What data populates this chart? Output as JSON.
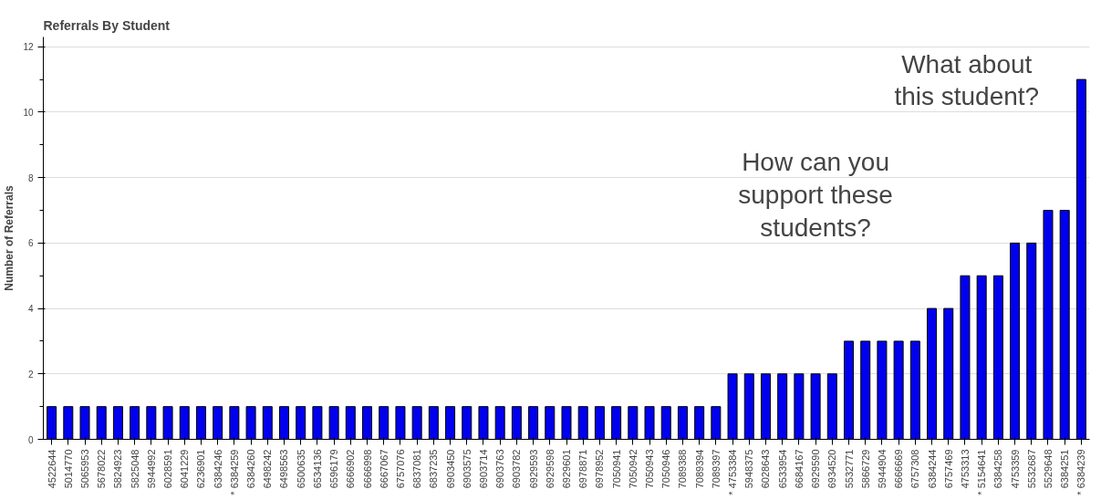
{
  "chart_data": {
    "type": "bar",
    "title": "Referrals By Student",
    "ylabel": "Number of Referrals",
    "categories": [
      "4522644",
      "5014770",
      "5065953",
      "5678022",
      "5824923",
      "5825048",
      "5944992",
      "6028591",
      "6041229",
      "6236901",
      "6384246",
      "* 6384259",
      "6384260",
      "6498242",
      "6498563",
      "6500635",
      "6534136",
      "6596179",
      "6666902",
      "6666998",
      "6667067",
      "6757076",
      "6837081",
      "6837235",
      "6903450",
      "6903575",
      "6903714",
      "6903763",
      "6903782",
      "6929593",
      "6929598",
      "6929601",
      "6978871",
      "6978952",
      "7050941",
      "7050942",
      "7050943",
      "7050946",
      "7089388",
      "7089394",
      "7089397",
      "* 4753384",
      "5948375",
      "6028643",
      "6533954",
      "6684167",
      "6929590",
      "6934520",
      "5532771",
      "5866729",
      "5944904",
      "6666669",
      "6757308",
      "6384244",
      "6757469",
      "4753313",
      "* 5154641",
      "6384258",
      "4753359",
      "5532687",
      "5529648",
      "6384251",
      "* 6384239"
    ],
    "values": [
      1,
      1,
      1,
      1,
      1,
      1,
      1,
      1,
      1,
      1,
      1,
      1,
      1,
      1,
      1,
      1,
      1,
      1,
      1,
      1,
      1,
      1,
      1,
      1,
      1,
      1,
      1,
      1,
      1,
      1,
      1,
      1,
      1,
      1,
      1,
      1,
      1,
      1,
      1,
      1,
      1,
      2,
      2,
      2,
      2,
      2,
      2,
      2,
      3,
      3,
      3,
      3,
      3,
      4,
      4,
      5,
      5,
      5,
      6,
      6,
      7,
      7,
      11
    ],
    "color": "#0000ee",
    "ylim": [
      0,
      12.3
    ],
    "yticks": [
      0,
      2,
      4,
      6,
      8,
      10,
      12
    ],
    "grid": "y",
    "annotations": [
      "What about\nthis student?",
      "How can you\nsupport these\nstudents?"
    ]
  }
}
